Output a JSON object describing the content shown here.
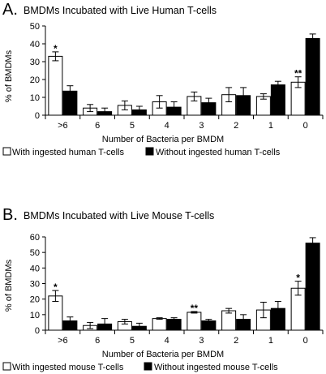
{
  "chart_data": [
    {
      "type": "bar",
      "panel": "A.",
      "title": "BMDMs Incubated with Live Human T-cells",
      "xlabel": "Number of Bacteria per BMDM",
      "ylabel": "% of BMDMs",
      "ylim": [
        0,
        50
      ],
      "yticks": [
        0,
        10,
        20,
        30,
        40,
        50
      ],
      "categories": [
        ">6",
        "6",
        "5",
        "4",
        "3",
        "2",
        "1",
        "0"
      ],
      "series": [
        {
          "name": "With ingested human T-cells",
          "fill": "#ffffff",
          "values": [
            33,
            4,
            5.5,
            7.5,
            10.5,
            11.5,
            10.5,
            18.5
          ],
          "errors": [
            2.5,
            2,
            2.5,
            3.5,
            2.5,
            4,
            1.5,
            3
          ]
        },
        {
          "name": "Without ingested human T-cells",
          "fill": "#000000",
          "values": [
            13.5,
            2,
            3,
            4.5,
            7,
            11,
            17,
            43
          ],
          "errors": [
            3,
            2,
            2,
            3,
            2.5,
            4.5,
            2,
            2.5
          ]
        }
      ],
      "annotations": [
        {
          "category": ">6",
          "series": 0,
          "text": "*"
        },
        {
          "category": "0",
          "series": 0,
          "text": "**"
        }
      ],
      "grid": false,
      "legend": "bottom"
    },
    {
      "type": "bar",
      "panel": "B.",
      "title": "BMDMs Incubated with Live Mouse T-cells",
      "xlabel": "Number of Bacteria per BMDM",
      "ylabel": "% of BMDMs",
      "ylim": [
        0,
        60
      ],
      "yticks": [
        0,
        10,
        20,
        30,
        40,
        50,
        60
      ],
      "categories": [
        ">6",
        "6",
        "5",
        "4",
        "3",
        "2",
        "1",
        "0"
      ],
      "series": [
        {
          "name": "With ingested mouse T-cells",
          "fill": "#ffffff",
          "values": [
            22,
            3,
            5.5,
            7.5,
            11.5,
            12.5,
            13,
            27
          ],
          "errors": [
            3.5,
            2,
            1.5,
            0.5,
            0.5,
            1.5,
            5,
            4.5
          ]
        },
        {
          "name": "Without ingested mouse T-cells",
          "fill": "#000000",
          "values": [
            6,
            4,
            2.5,
            7,
            6,
            7,
            14,
            56
          ],
          "errors": [
            2.5,
            3.5,
            2,
            1,
            1,
            3,
            4.5,
            3.5
          ]
        }
      ],
      "annotations": [
        {
          "category": ">6",
          "series": 0,
          "text": "*"
        },
        {
          "category": "3",
          "series": 0,
          "text": "**"
        },
        {
          "category": "0",
          "series": 0,
          "text": "*"
        }
      ],
      "grid": false,
      "legend": "bottom"
    }
  ]
}
